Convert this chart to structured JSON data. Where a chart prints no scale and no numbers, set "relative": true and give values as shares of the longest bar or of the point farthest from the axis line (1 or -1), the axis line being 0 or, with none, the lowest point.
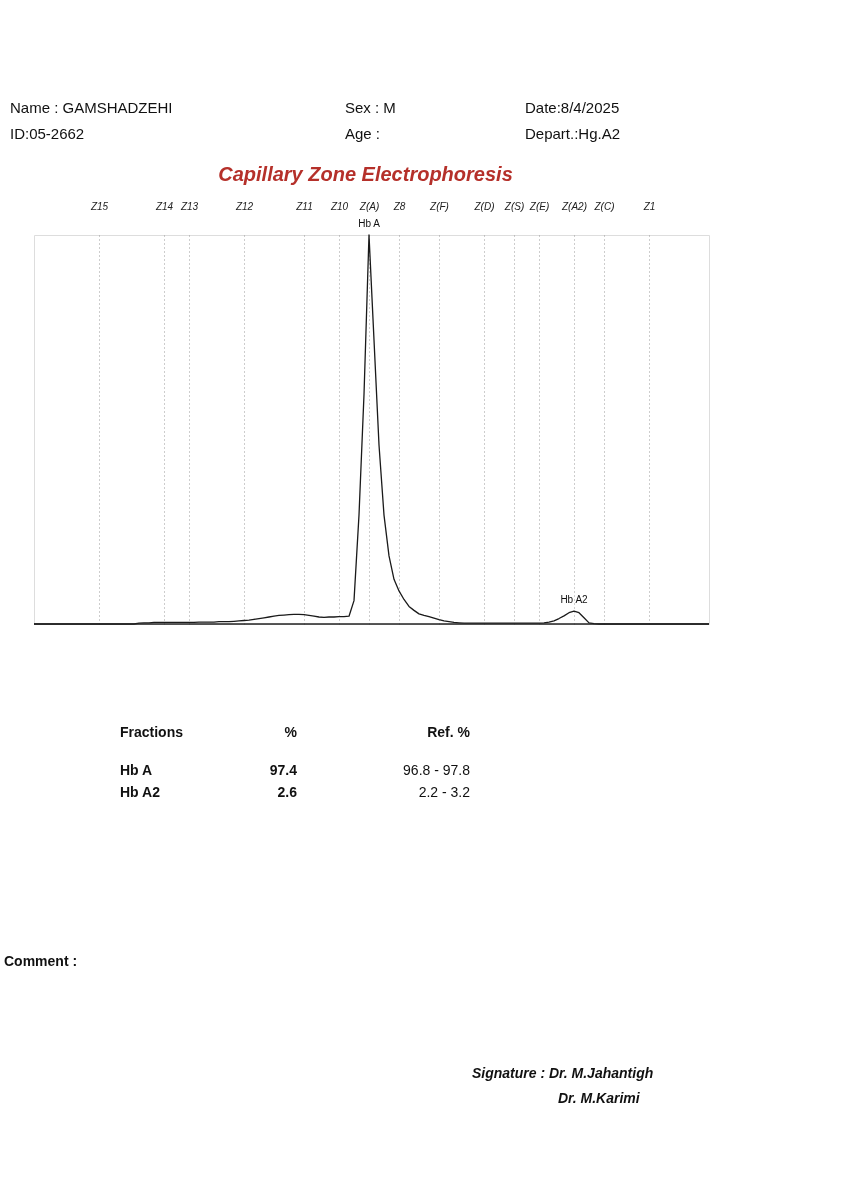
{
  "chart_data": [
    {
      "type": "other",
      "annotations": [
        "Name : GAMSHADZEHI",
        "Sex : M",
        "Date:8/4/2025",
        "ID:05-2662",
        "Age :",
        "Depart.:Hg.A2"
      ]
    },
    {
      "type": "line",
      "title": "Capillary Zone Electrophoresis",
      "relative": true,
      "grid": "x",
      "line_style": "solid",
      "categories": [
        null,
        null,
        null,
        null,
        null,
        null,
        null,
        null,
        null,
        null,
        null,
        null,
        null,
        "Z15",
        null,
        null,
        null,
        null,
        null,
        null,
        null,
        null,
        null,
        null,
        null,
        null,
        "Z14",
        null,
        null,
        null,
        null,
        "Z13",
        null,
        null,
        null,
        null,
        null,
        null,
        null,
        null,
        null,
        null,
        "Z12",
        null,
        null,
        null,
        null,
        null,
        null,
        null,
        null,
        null,
        null,
        null,
        "Z11",
        null,
        null,
        null,
        null,
        null,
        null,
        "Z10",
        null,
        null,
        null,
        null,
        null,
        "Z(A)",
        null,
        null,
        null,
        null,
        null,
        "Z8",
        null,
        null,
        null,
        null,
        null,
        null,
        null,
        "Z(F)",
        null,
        null,
        null,
        null,
        null,
        null,
        null,
        null,
        "Z(D)",
        null,
        null,
        null,
        null,
        null,
        "Z(S)",
        null,
        null,
        null,
        null,
        "Z(E)",
        null,
        null,
        null,
        null,
        null,
        null,
        "Z(A2)",
        null,
        null,
        null,
        null,
        null,
        "Z(C)",
        null,
        null,
        null,
        null,
        null,
        null,
        null,
        null,
        "Z1",
        null,
        null,
        null,
        null,
        null,
        null,
        null,
        null,
        null,
        null,
        null,
        null
      ],
      "series": [
        {
          "color": "#1a1a1a",
          "values": [
            0,
            0,
            0,
            0,
            0,
            0,
            0,
            0,
            0,
            0,
            0,
            0,
            0,
            0,
            0,
            0,
            0,
            0,
            0,
            0,
            0,
            0.002,
            0.003,
            0.003,
            0.004,
            0.004,
            0.004,
            0.004,
            0.004,
            0.004,
            0.004,
            0.004,
            0.004,
            0.005,
            0.005,
            0.005,
            0.005,
            0.006,
            0.006,
            0.006,
            0.007,
            0.008,
            0.009,
            0.01,
            0.012,
            0.014,
            0.016,
            0.018,
            0.02,
            0.022,
            0.023,
            0.024,
            0.025,
            0.025,
            0.024,
            0.022,
            0.02,
            0.018,
            0.017,
            0.018,
            0.018,
            0.019,
            0.019,
            0.02,
            0.06,
            0.28,
            0.59,
            1,
            0.73,
            0.46,
            0.28,
            0.175,
            0.115,
            0.085,
            0.063,
            0.045,
            0.035,
            0.026,
            0.022,
            0.019,
            0.015,
            0.011,
            0.008,
            0.006,
            0.004,
            0.003,
            0.002,
            0.002,
            0.002,
            0.002,
            0.002,
            0.002,
            0.002,
            0.002,
            0.002,
            0.002,
            0.002,
            0.002,
            0.002,
            0.002,
            0.002,
            0.002,
            0.003,
            0.005,
            0.008,
            0.014,
            0.021,
            0.029,
            0.033,
            0.029,
            0.016,
            0.003,
            0.001,
            0,
            0,
            0,
            0,
            0,
            0,
            0,
            0,
            0,
            0,
            0,
            0,
            0,
            0,
            0,
            0,
            0,
            0,
            0,
            0,
            0,
            0,
            0
          ]
        }
      ],
      "annotations": [
        {
          "text": "Hb A",
          "x": "Z(A)",
          "y": 1
        },
        {
          "text": "Hb A2",
          "x": "Z(A2)",
          "y": 0.033
        }
      ]
    },
    {
      "type": "other",
      "annotations": [
        "Fractions",
        "%",
        "Ref. %",
        "Hb A",
        "97.4",
        "96.8 - 97.8",
        "Hb A2",
        "2.6",
        "2.2 - 3.2"
      ]
    },
    {
      "type": "other",
      "annotations": [
        "Comment :",
        "Signature : Dr. M.Jahantigh",
        "Dr. M.Karimi"
      ]
    }
  ]
}
